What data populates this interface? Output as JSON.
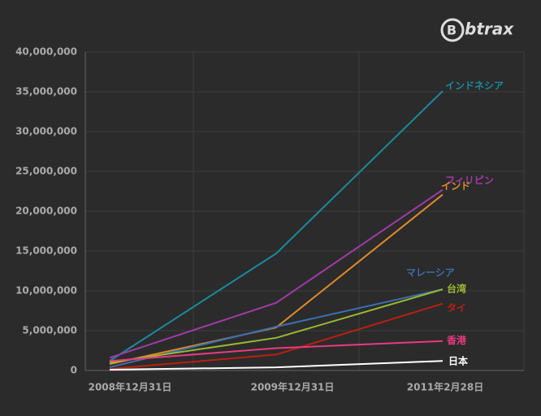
{
  "brand": "btrax",
  "chart_data": {
    "type": "line",
    "categories": [
      "2008年12月31日",
      "2009年12月31日",
      "2011年2月28日"
    ],
    "series": [
      {
        "name": "インドネシア",
        "color": "#1a8aa0",
        "values": [
          1200000,
          14700000,
          35100000
        ]
      },
      {
        "name": "フィリピン",
        "color": "#a03aa8",
        "values": [
          1600000,
          8500000,
          22700000
        ]
      },
      {
        "name": "インド",
        "color": "#e08a2a",
        "values": [
          800000,
          5400000,
          22100000
        ]
      },
      {
        "name": "マレーシア",
        "color": "#3a6fb0",
        "values": [
          400000,
          5500000,
          10200000
        ]
      },
      {
        "name": "台湾",
        "color": "#9ab830",
        "values": [
          1000000,
          4100000,
          10200000
        ]
      },
      {
        "name": "タイ",
        "color": "#b82010",
        "values": [
          200000,
          2000000,
          8400000
        ]
      },
      {
        "name": "香港",
        "color": "#e83a80",
        "values": [
          1200000,
          2800000,
          3700000
        ]
      },
      {
        "name": "日本",
        "color": "#ffffff",
        "values": [
          100000,
          400000,
          1200000
        ]
      }
    ],
    "ylim": [
      0,
      40000000
    ],
    "yticks": [
      {
        "value": 0,
        "label": "0"
      },
      {
        "value": 5000000,
        "label": "5,000,000"
      },
      {
        "value": 10000000,
        "label": "10,000,000"
      },
      {
        "value": 15000000,
        "label": "15,000,000"
      },
      {
        "value": 20000000,
        "label": "20,000,000"
      },
      {
        "value": 25000000,
        "label": "25,000,000"
      },
      {
        "value": 30000000,
        "label": "30,000,000"
      },
      {
        "value": 35000000,
        "label": "35,000,000"
      },
      {
        "value": 40000000,
        "label": "40,000,000"
      }
    ],
    "grid": true
  }
}
